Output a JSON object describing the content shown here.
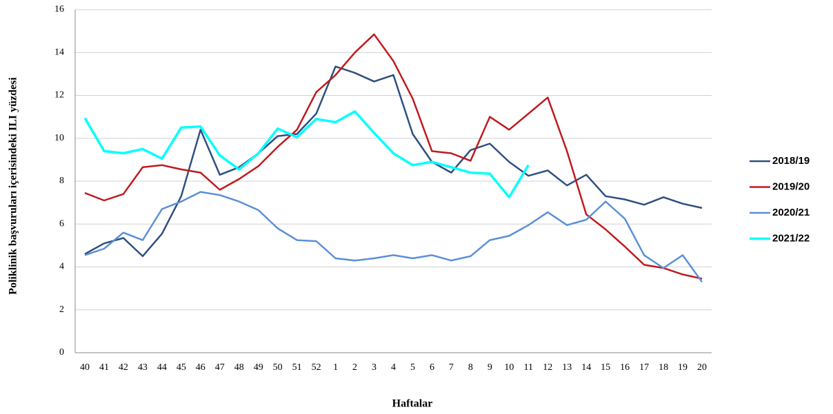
{
  "chart_data": {
    "type": "line",
    "x_label": "Haftalar",
    "y_label": "Poliklinik başvuruları içerisindeki ILI yüzdesi",
    "categories": [
      "40",
      "41",
      "42",
      "43",
      "44",
      "45",
      "46",
      "47",
      "48",
      "49",
      "50",
      "51",
      "52",
      "1",
      "2",
      "3",
      "4",
      "5",
      "6",
      "7",
      "8",
      "9",
      "10",
      "11",
      "12",
      "13",
      "14",
      "15",
      "16",
      "17",
      "18",
      "19",
      "20"
    ],
    "series": [
      {
        "name": "2018/19",
        "color": "#2e4f7e",
        "values": [
          4.6,
          5.1,
          5.35,
          4.5,
          5.55,
          7.3,
          10.4,
          8.3,
          8.65,
          9.3,
          10.1,
          10.2,
          11.15,
          13.35,
          13.05,
          12.65,
          12.95,
          10.2,
          8.9,
          8.4,
          9.45,
          9.75,
          8.9,
          8.25,
          8.5,
          7.8,
          8.3,
          7.3,
          7.15,
          6.9,
          7.25,
          6.95,
          6.75
        ]
      },
      {
        "name": "2019/20",
        "color": "#c0191c",
        "values": [
          7.45,
          7.1,
          7.4,
          8.65,
          8.75,
          8.55,
          8.4,
          7.6,
          8.1,
          8.7,
          9.6,
          10.4,
          12.15,
          12.95,
          14.0,
          14.85,
          13.6,
          11.85,
          9.4,
          9.3,
          8.95,
          11.0,
          10.4,
          11.15,
          11.9,
          9.4,
          6.45,
          5.75,
          4.95,
          4.1,
          3.95,
          3.65,
          3.45
        ]
      },
      {
        "name": "2020/21",
        "color": "#5b8fd6",
        "values": [
          4.55,
          4.85,
          5.6,
          5.25,
          6.7,
          7.05,
          7.5,
          7.35,
          7.05,
          6.65,
          5.8,
          5.25,
          5.2,
          4.4,
          4.3,
          4.4,
          4.55,
          4.4,
          4.55,
          4.3,
          4.5,
          5.25,
          5.45,
          5.95,
          6.55,
          5.95,
          6.2,
          7.05,
          6.25,
          4.55,
          3.95,
          4.55,
          3.3
        ]
      },
      {
        "name": "2021/22",
        "color": "#00ffff",
        "values": [
          10.95,
          9.4,
          9.3,
          9.5,
          9.05,
          10.5,
          10.55,
          9.2,
          8.55,
          9.3,
          10.45,
          10.05,
          10.9,
          10.75,
          11.25,
          10.25,
          9.3,
          8.75,
          8.9,
          8.65,
          8.4,
          8.35,
          7.25,
          8.75,
          null,
          null,
          null,
          null,
          null,
          null,
          null,
          null,
          null
        ]
      }
    ],
    "ylim": [
      0,
      16
    ],
    "yticks": [
      0,
      2,
      4,
      6,
      8,
      10,
      12,
      14,
      16
    ],
    "grid": true
  }
}
